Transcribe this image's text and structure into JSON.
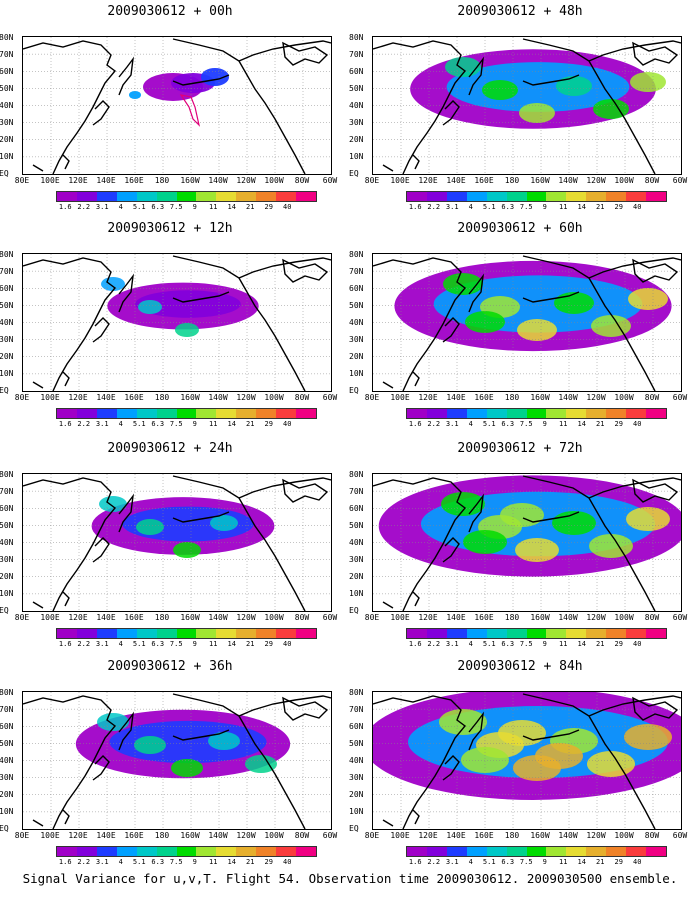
{
  "panels": [
    {
      "title": "2009030612 + 00h",
      "intensity": 0
    },
    {
      "title": "2009030612 + 12h",
      "intensity": 1
    },
    {
      "title": "2009030612 + 24h",
      "intensity": 2
    },
    {
      "title": "2009030612 + 36h",
      "intensity": 3
    },
    {
      "title": "2009030612 + 48h",
      "intensity": 4
    },
    {
      "title": "2009030612 + 60h",
      "intensity": 5
    },
    {
      "title": "2009030612 + 72h",
      "intensity": 6
    },
    {
      "title": "2009030612 + 84h",
      "intensity": 7
    }
  ],
  "lat_labels": [
    "80N",
    "70N",
    "60N",
    "50N",
    "40N",
    "30N",
    "20N",
    "10N",
    "EQ"
  ],
  "lon_labels": [
    "80E",
    "100E",
    "120E",
    "140E",
    "160E",
    "180",
    "160W",
    "140W",
    "120W",
    "100W",
    "80W",
    "60W"
  ],
  "colorbar": {
    "labels": [
      "1.6",
      "2.2",
      "3.1",
      "4",
      "5.1",
      "6.3",
      "7.5",
      "9",
      "11",
      "14",
      "21",
      "29",
      "40"
    ],
    "colors": [
      "#a000c8",
      "#8200dc",
      "#1e3cff",
      "#00a0ff",
      "#00c8c8",
      "#00d28c",
      "#00dc00",
      "#a0e632",
      "#e6dc32",
      "#e6af2d",
      "#f08228",
      "#fa3c3c",
      "#f00082"
    ]
  },
  "footer": "Signal Variance for u,v,T. Flight 54. Observation time 2009030612. 2009030500 ensemble."
}
